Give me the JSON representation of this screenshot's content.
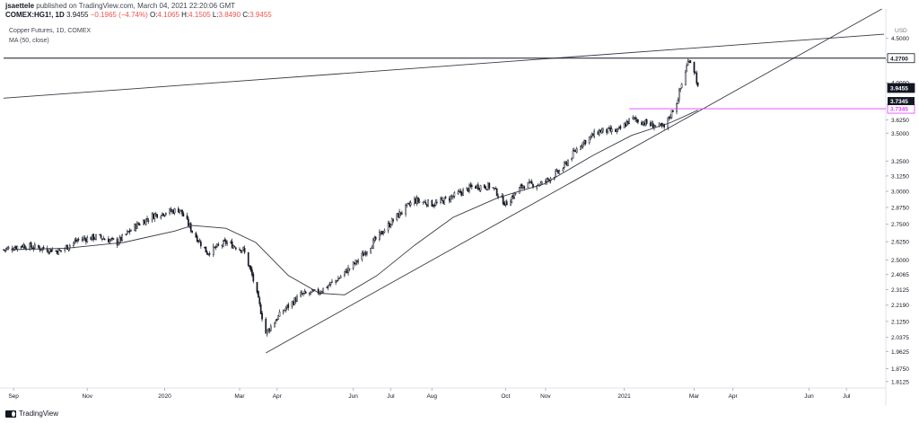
{
  "header": {
    "user": "jsaettele",
    "published": "published on TradingView.com, March 04, 2021 22:20:06 GMT"
  },
  "ohlc": {
    "symbol": "COMEX:HG1!, 1D",
    "last": "3.9455",
    "change": "−0.1965 (−4.74%)",
    "o_label": "O:",
    "o": "4.1065",
    "h_label": "H:",
    "h": "4.1505",
    "l_label": "L:",
    "l": "3.8490",
    "c_label": "C:",
    "c": "3.9455"
  },
  "legend": {
    "title": "Copper Futures, 1D, COMEX",
    "ma": "MA (50, close)"
  },
  "footer": {
    "brand": "TradingView"
  },
  "colors": {
    "up": "#131722",
    "down": "#131722",
    "ma": "#363a45",
    "trend": "#363a45",
    "level": "#131722",
    "magenta": "#e040fb",
    "negative": "#ef5350",
    "grid": "#e0e3eb",
    "axis_text": "#131722"
  },
  "chart_data": {
    "type": "line",
    "title": "Copper Futures, 1D, COMEX",
    "currency": "USD",
    "y_ticks": [
      1.8125,
      1.875,
      1.9625,
      2.0375,
      2.125,
      2.219,
      2.3125,
      2.4065,
      2.5,
      2.625,
      2.75,
      2.875,
      3.0,
      3.125,
      3.25,
      3.5,
      3.625,
      4.0,
      4.25,
      4.5
    ],
    "y_tick_labels": [
      "1.8125",
      "1.8750",
      "1.9625",
      "2.0375",
      "2.1250",
      "2.2190",
      "2.3125",
      "2.4065",
      "2.5000",
      "2.6250",
      "2.7500",
      "2.8750",
      "3.0000",
      "3.1250",
      "3.2500",
      "3.5000",
      "3.6250",
      "4.0000",
      "4.2500",
      "4.5000"
    ],
    "ylim": [
      1.79,
      4.75
    ],
    "log_scale": true,
    "x_start": "2019-08-26",
    "x_end": "2021-07-31",
    "x_ticks": [
      {
        "label": "Sep",
        "date": "2019-09-03"
      },
      {
        "label": "Nov",
        "date": "2019-11-01"
      },
      {
        "label": "2020",
        "date": "2020-01-02"
      },
      {
        "label": "Mar",
        "date": "2020-03-02"
      },
      {
        "label": "Apr",
        "date": "2020-04-01"
      },
      {
        "label": "Jun",
        "date": "2020-06-01"
      },
      {
        "label": "Jul",
        "date": "2020-07-01"
      },
      {
        "label": "Aug",
        "date": "2020-08-03"
      },
      {
        "label": "Oct",
        "date": "2020-10-01"
      },
      {
        "label": "Nov",
        "date": "2020-11-02"
      },
      {
        "label": "2021",
        "date": "2021-01-04"
      },
      {
        "label": "Mar",
        "date": "2021-03-01"
      },
      {
        "label": "Apr",
        "date": "2021-04-01"
      },
      {
        "label": "Jun",
        "date": "2021-06-01"
      },
      {
        "label": "Jul",
        "date": "2021-07-01"
      }
    ],
    "price_path": [
      {
        "date": "2019-08-26",
        "close": 2.57
      },
      {
        "date": "2019-09-10",
        "close": 2.6
      },
      {
        "date": "2019-09-25",
        "close": 2.58
      },
      {
        "date": "2019-10-10",
        "close": 2.56
      },
      {
        "date": "2019-10-25",
        "close": 2.64
      },
      {
        "date": "2019-11-10",
        "close": 2.66
      },
      {
        "date": "2019-11-25",
        "close": 2.62
      },
      {
        "date": "2019-12-10",
        "close": 2.74
      },
      {
        "date": "2019-12-25",
        "close": 2.82
      },
      {
        "date": "2020-01-14",
        "close": 2.86
      },
      {
        "date": "2020-01-24",
        "close": 2.7
      },
      {
        "date": "2020-02-05",
        "close": 2.55
      },
      {
        "date": "2020-02-20",
        "close": 2.62
      },
      {
        "date": "2020-03-05",
        "close": 2.57
      },
      {
        "date": "2020-03-12",
        "close": 2.4
      },
      {
        "date": "2020-03-23",
        "close": 2.06
      },
      {
        "date": "2020-04-05",
        "close": 2.18
      },
      {
        "date": "2020-04-20",
        "close": 2.28
      },
      {
        "date": "2020-05-05",
        "close": 2.3
      },
      {
        "date": "2020-05-20",
        "close": 2.38
      },
      {
        "date": "2020-06-05",
        "close": 2.5
      },
      {
        "date": "2020-06-20",
        "close": 2.65
      },
      {
        "date": "2020-07-05",
        "close": 2.8
      },
      {
        "date": "2020-07-20",
        "close": 2.93
      },
      {
        "date": "2020-08-05",
        "close": 2.9
      },
      {
        "date": "2020-08-20",
        "close": 2.96
      },
      {
        "date": "2020-09-05",
        "close": 3.04
      },
      {
        "date": "2020-09-20",
        "close": 3.04
      },
      {
        "date": "2020-10-01",
        "close": 2.9
      },
      {
        "date": "2020-10-15",
        "close": 3.05
      },
      {
        "date": "2020-10-30",
        "close": 3.06
      },
      {
        "date": "2020-11-15",
        "close": 3.18
      },
      {
        "date": "2020-11-30",
        "close": 3.4
      },
      {
        "date": "2020-12-15",
        "close": 3.52
      },
      {
        "date": "2020-12-30",
        "close": 3.52
      },
      {
        "date": "2021-01-10",
        "close": 3.64
      },
      {
        "date": "2021-01-25",
        "close": 3.58
      },
      {
        "date": "2021-02-05",
        "close": 3.55
      },
      {
        "date": "2021-02-15",
        "close": 3.8
      },
      {
        "date": "2021-02-25",
        "close": 4.27
      },
      {
        "date": "2021-03-02",
        "close": 4.1
      },
      {
        "date": "2021-03-04",
        "close": 3.9455
      }
    ],
    "ma_path": [
      {
        "date": "2019-09-01",
        "value": 2.57
      },
      {
        "date": "2019-10-15",
        "value": 2.58
      },
      {
        "date": "2019-11-30",
        "value": 2.62
      },
      {
        "date": "2020-01-10",
        "value": 2.7
      },
      {
        "date": "2020-01-24",
        "value": 2.74
      },
      {
        "date": "2020-02-20",
        "value": 2.72
      },
      {
        "date": "2020-03-15",
        "value": 2.62
      },
      {
        "date": "2020-04-10",
        "value": 2.4
      },
      {
        "date": "2020-05-05",
        "value": 2.29
      },
      {
        "date": "2020-05-25",
        "value": 2.28
      },
      {
        "date": "2020-06-20",
        "value": 2.4
      },
      {
        "date": "2020-07-20",
        "value": 2.6
      },
      {
        "date": "2020-08-20",
        "value": 2.8
      },
      {
        "date": "2020-09-25",
        "value": 2.95
      },
      {
        "date": "2020-11-01",
        "value": 3.06
      },
      {
        "date": "2020-12-10",
        "value": 3.3
      },
      {
        "date": "2021-01-10",
        "value": 3.48
      },
      {
        "date": "2021-02-10",
        "value": 3.6
      },
      {
        "date": "2021-03-04",
        "value": 3.72
      }
    ],
    "trendlines": [
      {
        "name": "long-term-resistance",
        "from": {
          "date": "2019-08-26",
          "value": 3.84
        },
        "to": {
          "date": "2021-07-31",
          "value": 4.55
        }
      },
      {
        "name": "rising-support",
        "from": {
          "date": "2020-03-23",
          "value": 1.955
        },
        "to": {
          "date": "2021-07-31",
          "value": 4.88
        }
      }
    ],
    "horizontal_levels": [
      {
        "name": "resistance-level",
        "value": 4.27,
        "label": "4.2700",
        "from_date": "2019-08-26",
        "color": "#131722"
      },
      {
        "name": "support-level",
        "value": 3.7345,
        "label": "3.7345",
        "from_date": "2021-01-08",
        "color": "#e040fb"
      }
    ],
    "price_labels": [
      {
        "name": "last-price",
        "value": 3.9455,
        "label": "3.9455",
        "color": "#131722"
      },
      {
        "name": "support-price",
        "value": 3.7345,
        "label": "3.7345",
        "color": "#e040fb"
      }
    ]
  }
}
